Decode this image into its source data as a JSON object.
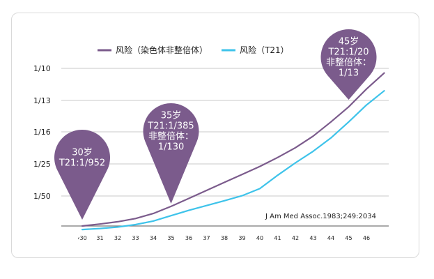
{
  "chart_data": {
    "type": "line",
    "x": [
      "30",
      "31",
      "32",
      "33",
      "34",
      "35",
      "36",
      "37",
      "38",
      "39",
      "40",
      "41",
      "42",
      "43",
      "44",
      "45",
      "46"
    ],
    "x_tick_labels": [
      "‹30",
      "31",
      "32",
      "33",
      "34",
      "35",
      "36",
      "37",
      "38",
      "39",
      "40",
      "41",
      "42",
      "43",
      "44",
      "45",
      "46"
    ],
    "y_tick_labels": [
      "1/10",
      "1/13",
      "1/16",
      "1/25",
      "1/50"
    ],
    "series": [
      {
        "name": "风险（染色体非整倍体）",
        "color": "#7b5b8c",
        "points": [
          [
            30,
            0.0
          ],
          [
            31,
            0.11
          ],
          [
            32,
            0.24
          ],
          [
            33,
            0.42
          ],
          [
            34,
            0.7
          ],
          [
            35,
            1.1
          ],
          [
            36,
            1.55
          ],
          [
            37,
            2.0
          ],
          [
            38,
            2.45
          ],
          [
            39,
            2.9
          ],
          [
            40,
            3.35
          ],
          [
            41,
            3.85
          ],
          [
            42,
            4.4
          ],
          [
            43,
            5.05
          ],
          [
            44,
            5.85
          ],
          [
            45,
            6.7
          ],
          [
            46,
            7.7
          ],
          [
            47,
            8.6
          ]
        ]
      },
      {
        "name": "风险（T21）",
        "color": "#3ec3ea",
        "points": [
          [
            30,
            -0.2
          ],
          [
            31,
            -0.14
          ],
          [
            32,
            -0.06
          ],
          [
            33,
            0.08
          ],
          [
            34,
            0.28
          ],
          [
            35,
            0.58
          ],
          [
            36,
            0.88
          ],
          [
            37,
            1.15
          ],
          [
            38,
            1.42
          ],
          [
            39,
            1.7
          ],
          [
            40,
            2.1
          ],
          [
            41,
            2.85
          ],
          [
            42,
            3.55
          ],
          [
            43,
            4.2
          ],
          [
            44,
            4.95
          ],
          [
            45,
            5.85
          ],
          [
            46,
            6.8
          ],
          [
            47,
            7.6
          ]
        ]
      }
    ],
    "annotations": [
      {
        "x": 30,
        "lines": [
          "30岁",
          "T21:1/952"
        ]
      },
      {
        "x": 35,
        "lines": [
          "35岁",
          "T21:1/385",
          "非整倍体：",
          "1/130"
        ]
      },
      {
        "x": 45,
        "lines": [
          "45岁",
          "T21:1/20",
          "非整倍体：",
          "1/13"
        ]
      }
    ],
    "source": "J Am Med Assoc.1983;249:2034",
    "legend_placement": "top",
    "grid": true
  }
}
